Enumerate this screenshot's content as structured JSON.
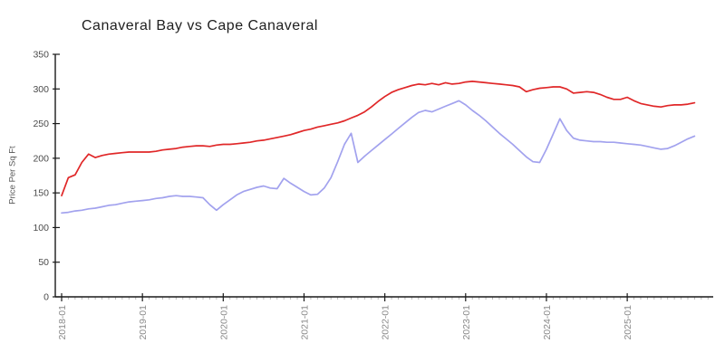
{
  "chart_data": {
    "type": "line",
    "title": "Canaveral Bay vs Cape Canaveral",
    "xlabel": "",
    "ylabel": "Price Per Sq Ft",
    "grid": false,
    "legend": "none",
    "ylim": [
      0,
      350
    ],
    "y_ticks": [
      0,
      50,
      100,
      150,
      200,
      250,
      300,
      350
    ],
    "x_tick_labels": [
      "2018-01",
      "2019-01",
      "2020-01",
      "2021-01",
      "2022-01",
      "2023-01",
      "2024-01",
      "2025-01"
    ],
    "x_minor_tick": "monthly",
    "x_start": "2018-01",
    "x_end": "2025-11",
    "series": [
      {
        "name": "Canaveral Bay",
        "color": "#e02728",
        "values": [
          146,
          172,
          176,
          194,
          206,
          201,
          204,
          206,
          207,
          208,
          209,
          209,
          209,
          209,
          210,
          212,
          213,
          214,
          216,
          217,
          218,
          218,
          217,
          219,
          220,
          220,
          221,
          222,
          223,
          225,
          226,
          228,
          230,
          232,
          234,
          237,
          240,
          242,
          245,
          247,
          249,
          251,
          254,
          258,
          262,
          267,
          274,
          282,
          289,
          295,
          299,
          302,
          305,
          307,
          306,
          308,
          306,
          309,
          307,
          308,
          310,
          311,
          310,
          309,
          308,
          307,
          306,
          305,
          303,
          296,
          299,
          301,
          302,
          303,
          303,
          300,
          294,
          295,
          296,
          295,
          292,
          288,
          285,
          285,
          288,
          283,
          279,
          277,
          275,
          274,
          276,
          277,
          277,
          278,
          280
        ]
      },
      {
        "name": "Cape Canaveral",
        "color": "#a2a2ee",
        "values": [
          121,
          122,
          124,
          125,
          127,
          128,
          130,
          132,
          133,
          135,
          137,
          138,
          139,
          140,
          142,
          143,
          145,
          146,
          145,
          145,
          144,
          143,
          133,
          125,
          133,
          140,
          147,
          152,
          155,
          158,
          160,
          157,
          156,
          171,
          164,
          158,
          152,
          147,
          148,
          157,
          172,
          195,
          220,
          236,
          194,
          203,
          211,
          219,
          227,
          235,
          243,
          251,
          259,
          266,
          269,
          267,
          271,
          275,
          279,
          283,
          277,
          269,
          262,
          254,
          245,
          236,
          228,
          220,
          211,
          202,
          195,
          194,
          213,
          235,
          257,
          240,
          229,
          226,
          225,
          224,
          224,
          223,
          223,
          222,
          221,
          220,
          219,
          217,
          215,
          213,
          214,
          218,
          223,
          228,
          232
        ]
      }
    ]
  }
}
